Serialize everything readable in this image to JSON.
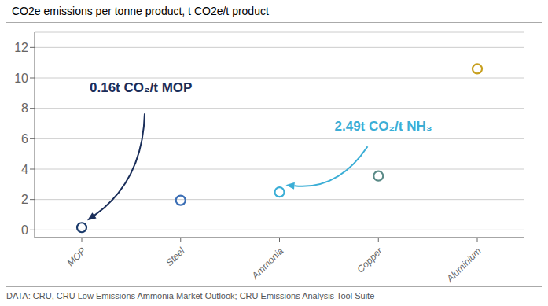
{
  "chart_data": {
    "type": "scatter",
    "title": "CO2e emissions per tonne product, t CO2e/t product",
    "categories": [
      "MOP",
      "Steel",
      "Ammonia",
      "Copper",
      "Aluminium"
    ],
    "values": [
      0.16,
      1.95,
      2.49,
      3.55,
      10.6
    ],
    "colors": [
      "#1a3a6b",
      "#3b6eb5",
      "#3baed6",
      "#5a8a87",
      "#c8a020"
    ],
    "marker": "circle",
    "ylim": [
      -0.5,
      13
    ],
    "yticks": [
      0,
      2,
      4,
      6,
      8,
      10,
      12
    ],
    "grid": true,
    "annotations": [
      {
        "text": "0.16t CO₂/t MOP",
        "color": "#1a2e5a",
        "category": "MOP"
      },
      {
        "text": "2.49t CO₂/t NH₃",
        "color": "#3baed6",
        "category": "Ammonia"
      }
    ],
    "footer": "DATA: CRU, CRU Low Emissions Ammonia Market Outlook; CRU Emissions Analysis Tool Suite"
  }
}
